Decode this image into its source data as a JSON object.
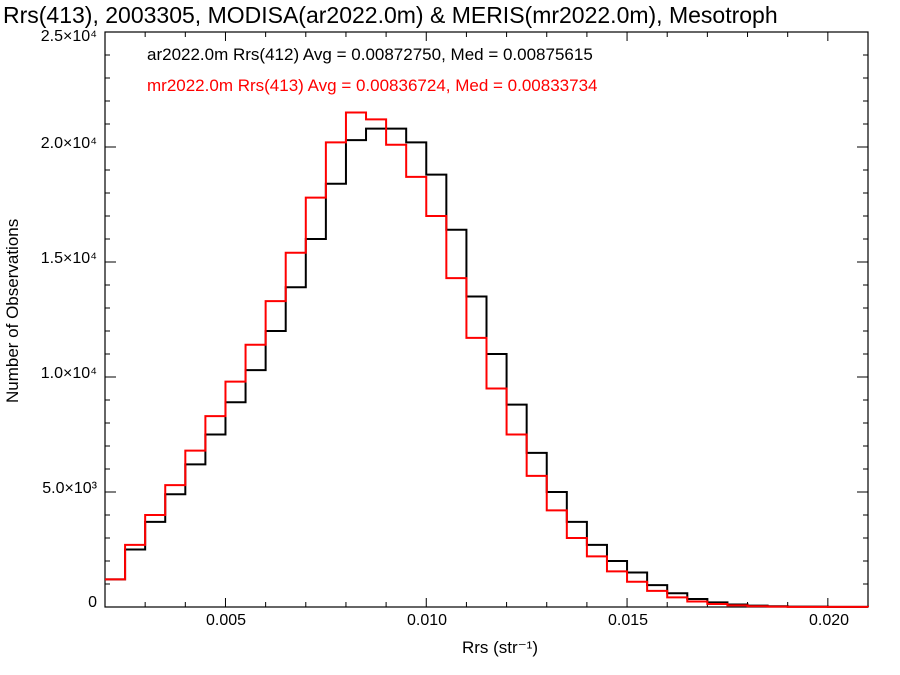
{
  "title": "Rrs(413), 2003305, MODISA(ar2022.0m) & MERIS(mr2022.0m), Mesotroph",
  "chart_data": {
    "type": "line",
    "step": true,
    "title": "Rrs(413), 2003305, MODISA(ar2022.0m) & MERIS(mr2022.0m), Mesotroph",
    "xlabel": "Rrs (str⁻¹)",
    "ylabel": "Number of Observations",
    "xlim": [
      0.002,
      0.021
    ],
    "ylim": [
      0,
      25000
    ],
    "xticks": [
      0.005,
      0.01,
      0.015,
      0.02
    ],
    "xtick_labels": [
      "0.005",
      "0.010",
      "0.015",
      "0.020"
    ],
    "yticks": [
      0,
      5000,
      10000,
      15000,
      20000,
      25000
    ],
    "ytick_labels": [
      "0",
      "5.0×10³",
      "1.0×10⁴",
      "1.5×10⁴",
      "2.0×10⁴",
      "2.5×10⁴"
    ],
    "grid": false,
    "annotations": [
      {
        "text": "ar2022.0m Rrs(412) Avg = 0.00872750, Med = 0.00875615",
        "color": "#000000"
      },
      {
        "text": "mr2022.0m Rrs(413) Avg = 0.00836724, Med = 0.00833734",
        "color": "#ff0000"
      }
    ],
    "series": [
      {
        "color": "#000000",
        "x": [
          0.002,
          0.0025,
          0.003,
          0.0035,
          0.004,
          0.0045,
          0.005,
          0.0055,
          0.006,
          0.0065,
          0.007,
          0.0075,
          0.008,
          0.0085,
          0.009,
          0.0095,
          0.01,
          0.0105,
          0.011,
          0.0115,
          0.012,
          0.0125,
          0.013,
          0.0135,
          0.014,
          0.0145,
          0.015,
          0.0155,
          0.016,
          0.0165,
          0.017,
          0.0175,
          0.018,
          0.0185,
          0.019,
          0.02,
          0.021
        ],
        "values": [
          1200,
          2500,
          3700,
          4900,
          6200,
          7500,
          8900,
          10300,
          12000,
          13900,
          16000,
          18400,
          20300,
          20800,
          20800,
          20200,
          18800,
          16400,
          13500,
          11000,
          8800,
          6700,
          5000,
          3700,
          2700,
          2000,
          1500,
          950,
          600,
          350,
          200,
          110,
          60,
          30,
          15,
          5,
          2
        ]
      },
      {
        "color": "#ff0000",
        "x": [
          0.002,
          0.0025,
          0.003,
          0.0035,
          0.004,
          0.0045,
          0.005,
          0.0055,
          0.006,
          0.0065,
          0.007,
          0.0075,
          0.008,
          0.0085,
          0.009,
          0.0095,
          0.01,
          0.0105,
          0.011,
          0.0115,
          0.012,
          0.0125,
          0.013,
          0.0135,
          0.014,
          0.0145,
          0.015,
          0.0155,
          0.016,
          0.0165,
          0.017,
          0.0175,
          0.018,
          0.0185,
          0.019,
          0.02,
          0.021
        ],
        "values": [
          1200,
          2700,
          4000,
          5300,
          6800,
          8300,
          9800,
          11400,
          13300,
          15400,
          17800,
          20200,
          21500,
          21200,
          20100,
          18700,
          17000,
          14300,
          11700,
          9500,
          7500,
          5700,
          4200,
          3000,
          2200,
          1550,
          1100,
          700,
          420,
          240,
          130,
          70,
          35,
          18,
          8,
          3,
          1
        ]
      }
    ]
  }
}
